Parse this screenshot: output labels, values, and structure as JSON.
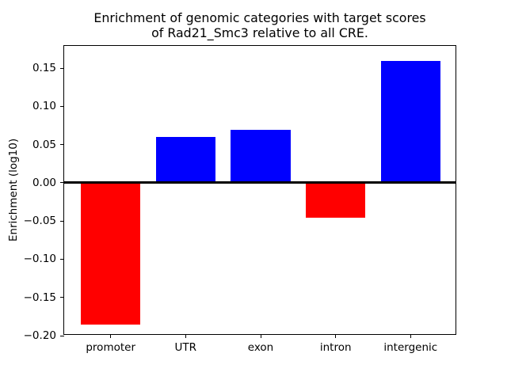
{
  "figure": {
    "title_line1": "Enrichment of genomic categories with target scores",
    "title_line2": "of Rad21_Smc3 relative to all CRE.",
    "background_color": "#ffffff",
    "text_color": "#000000"
  },
  "chart_data": {
    "type": "bar",
    "title": "Enrichment of genomic categories with target scores\nof Rad21_Smc3 relative to all CRE.",
    "xlabel": "",
    "ylabel": "Enrichment (log10)",
    "categories": [
      "promoter",
      "UTR",
      "exon",
      "intron",
      "intergenic"
    ],
    "values": [
      -0.186,
      0.06,
      0.069,
      -0.046,
      0.159
    ],
    "bar_colors": [
      "#ff0000",
      "#0000ff",
      "#0000ff",
      "#ff0000",
      "#0000ff"
    ],
    "positive_color": "#0000ff",
    "negative_color": "#ff0000",
    "bar_width": 0.8,
    "xlim": [
      -0.62,
      4.62
    ],
    "ylim": [
      -0.2,
      0.179
    ],
    "yticks": [
      {
        "value": 0.15,
        "label": "0.15"
      },
      {
        "value": 0.1,
        "label": "0.10"
      },
      {
        "value": 0.05,
        "label": "0.05"
      },
      {
        "value": 0.0,
        "label": "0.00"
      },
      {
        "value": -0.05,
        "label": "−0.05"
      },
      {
        "value": -0.1,
        "label": "−0.10"
      },
      {
        "value": -0.15,
        "label": "−0.15"
      },
      {
        "value": -0.2,
        "label": "−0.20"
      }
    ],
    "zero_line": {
      "color": "#000000",
      "thickness_px": 3
    },
    "grid": false,
    "legend_position": "none",
    "frame": "box",
    "spine_color": "#000000"
  }
}
